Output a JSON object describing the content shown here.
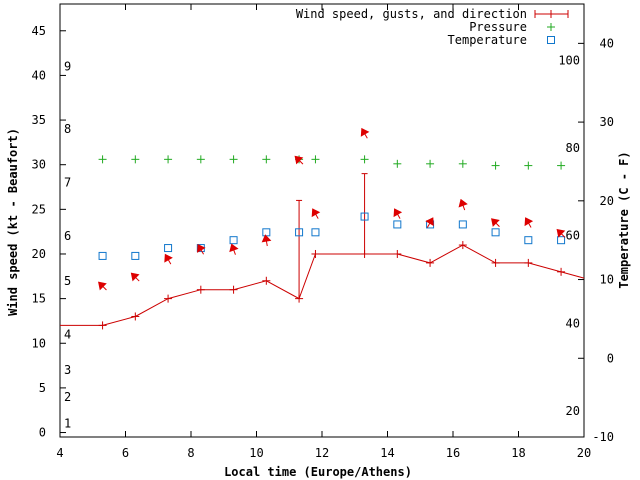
{
  "chart_data": {
    "type": "line",
    "xlabel": "Local time (Europe/Athens)",
    "ylabel": "Wind speed (kt - Beaufort)",
    "y2label": "Temperature (C - F)",
    "xlim": [
      4,
      20
    ],
    "ylim": [
      -0.5,
      48
    ],
    "y2lim": [
      -10,
      45
    ],
    "x_ticks": [
      "4",
      "6",
      "8",
      "10",
      "12",
      "14",
      "16",
      "18",
      "20"
    ],
    "y_ticks": [
      "0",
      "5",
      "10",
      "15",
      "20",
      "25",
      "30",
      "35",
      "40",
      "45"
    ],
    "y2_ticks": [
      "-10",
      "0",
      "10",
      "20",
      "30",
      "40"
    ],
    "beaufort_labels": [
      {
        "label": "1",
        "y": 1
      },
      {
        "label": "2",
        "y": 4
      },
      {
        "label": "3",
        "y": 7
      },
      {
        "label": "4",
        "y": 11
      },
      {
        "label": "5",
        "y": 17
      },
      {
        "label": "6",
        "y": 22
      },
      {
        "label": "7",
        "y": 28
      },
      {
        "label": "8",
        "y": 34
      },
      {
        "label": "9",
        "y": 41
      }
    ],
    "fahrenheit_labels": [
      {
        "label": "20",
        "c": -6.7
      },
      {
        "label": "40",
        "c": 4.4
      },
      {
        "label": "60",
        "c": 15.6
      },
      {
        "label": "80",
        "c": 26.7
      },
      {
        "label": "100",
        "c": 37.8
      }
    ],
    "legend": {
      "position": "top-right",
      "entries": [
        "Wind speed, gusts, and direction",
        "Pressure",
        "Temperature"
      ]
    },
    "colors": {
      "wind": "#cc0000",
      "pressure": "#22aa22",
      "temperature": "#1177cc",
      "arrow": "#dd0000"
    },
    "series": [
      {
        "name": "Wind speed, gusts, and direction",
        "x": [
          4,
          5.3,
          6.3,
          7.3,
          8.3,
          9.3,
          10.3,
          11.3,
          11.8,
          13.3,
          14.3,
          15.3,
          16.3,
          17.3,
          18.3,
          19.3,
          20
        ],
        "values": [
          12,
          12,
          13,
          15,
          16,
          16,
          17,
          15,
          20,
          20,
          20,
          19,
          21,
          19,
          19,
          18,
          17.3
        ]
      },
      {
        "name": "Pressure",
        "x": [
          5.3,
          6.3,
          7.3,
          8.3,
          9.3,
          10.3,
          11.3,
          11.8,
          13.3,
          14.3,
          15.3,
          16.3,
          17.3,
          18.3,
          19.3
        ],
        "values": [
          30.6,
          30.6,
          30.6,
          30.6,
          30.6,
          30.6,
          30.6,
          30.6,
          30.6,
          30.1,
          30.1,
          30.1,
          29.9,
          29.9,
          29.9
        ]
      },
      {
        "name": "Temperature",
        "x": [
          5.3,
          6.3,
          7.3,
          8.3,
          9.3,
          10.3,
          11.3,
          11.8,
          13.3,
          14.3,
          15.3,
          16.3,
          17.3,
          18.3,
          19.3
        ],
        "values": [
          13,
          13,
          14,
          14,
          15,
          16,
          16,
          16,
          18,
          17,
          17,
          17,
          16,
          15,
          15
        ]
      }
    ],
    "gusts": [
      {
        "x": 11.3,
        "values": 26
      },
      {
        "x": 13.3,
        "values": 29
      }
    ],
    "wind_direction_markers": [
      {
        "x": 5.3,
        "y": 16.4,
        "angle": -135
      },
      {
        "x": 6.3,
        "y": 17.4,
        "angle": -135
      },
      {
        "x": 7.3,
        "y": 19.4,
        "angle": -120
      },
      {
        "x": 8.3,
        "y": 20.5,
        "angle": -120
      },
      {
        "x": 9.3,
        "y": 20.5,
        "angle": -110
      },
      {
        "x": 10.3,
        "y": 21.5,
        "angle": -100
      },
      {
        "x": 11.3,
        "y": 30.5,
        "angle": -135
      },
      {
        "x": 11.8,
        "y": 24.5,
        "angle": -120
      },
      {
        "x": 13.3,
        "y": 33.5,
        "angle": -120
      },
      {
        "x": 14.3,
        "y": 24.5,
        "angle": -120
      },
      {
        "x": 15.3,
        "y": 23.5,
        "angle": -60
      },
      {
        "x": 16.3,
        "y": 25.5,
        "angle": -110
      },
      {
        "x": 17.3,
        "y": 23.5,
        "angle": -135
      },
      {
        "x": 18.3,
        "y": 23.5,
        "angle": -120
      },
      {
        "x": 19.3,
        "y": 22.3,
        "angle": -135
      }
    ]
  }
}
